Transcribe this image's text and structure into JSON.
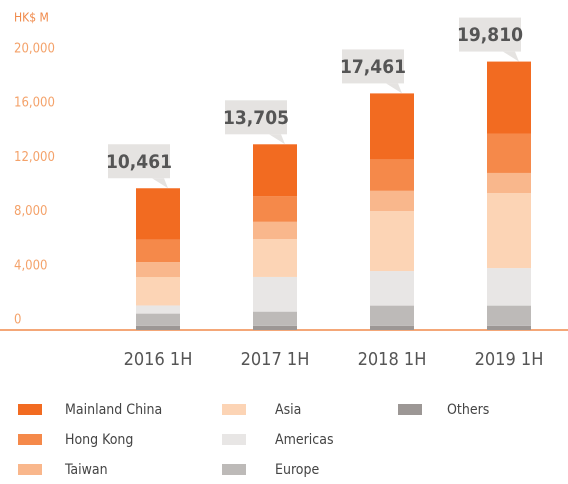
{
  "chart_data": {
    "type": "stacked_bar",
    "y_label": "HK$ M",
    "categories": [
      "2016 1H",
      "2017 1H",
      "2018 1H",
      "2019 1H"
    ],
    "series": [
      {
        "name": "Others",
        "color": "#9c9795",
        "values": [
          311,
          305,
          301,
          310
        ]
      },
      {
        "name": "Europe",
        "color": "#bdbab8",
        "values": [
          900,
          1050,
          1500,
          1490
        ]
      },
      {
        "name": "Americas",
        "color": "#e8e6e5",
        "values": [
          600,
          2560,
          2550,
          2770
        ]
      },
      {
        "name": "Asia",
        "color": "#fcd4b5",
        "values": [
          2100,
          2790,
          4420,
          5530
        ]
      },
      {
        "name": "Taiwan",
        "color": "#f9b78c",
        "values": [
          1100,
          1280,
          1500,
          1490
        ]
      },
      {
        "name": "Hong Kong",
        "color": "#f5894a",
        "values": [
          1650,
          1880,
          2320,
          2910
        ]
      },
      {
        "name": "Mainland China",
        "color": "#f26b21",
        "values": [
          3800,
          3840,
          4870,
          5310
        ]
      }
    ],
    "totals": [
      10461,
      13705,
      17461,
      19810
    ],
    "total_labels": [
      "10,461",
      "13,705",
      "17,461",
      "19,810"
    ],
    "ylim": [
      0,
      20000
    ],
    "yticks": [
      0,
      {
        "value": 4000,
        "label": "4,000"
      },
      {
        "value": 8000,
        "label": "8,000"
      },
      {
        "value": 12000,
        "label": "12,000"
      },
      {
        "value": 16000,
        "label": "16,000"
      },
      {
        "value": 20000,
        "label": "20,000"
      }
    ],
    "grid": false
  }
}
